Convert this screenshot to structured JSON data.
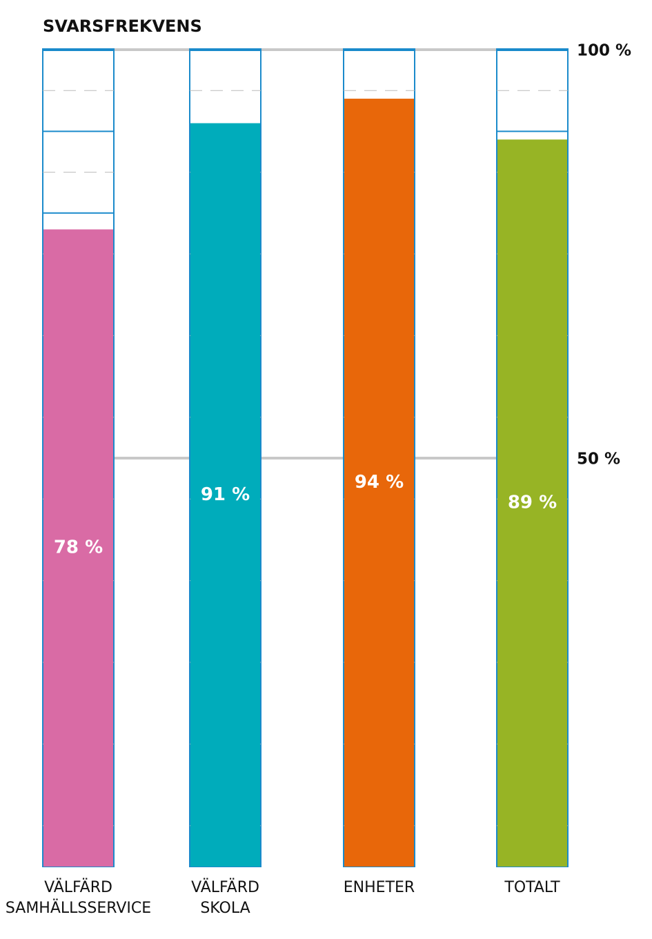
{
  "chart_data": {
    "type": "bar",
    "title": "SVARSFREKVENS",
    "categories": [
      "VÄLFÄRD SAMHÄLLSSERVICE",
      "VÄLFÄRD SKOLA",
      "ENHETER",
      "TOTALT"
    ],
    "values": [
      78,
      91,
      94,
      89
    ],
    "value_labels": [
      "78 %",
      "91 %",
      "94 %",
      "89 %"
    ],
    "colors": [
      "#d96ba5",
      "#00acbb",
      "#e8670a",
      "#97b425"
    ],
    "ylim": [
      0,
      100
    ],
    "yticks": [
      {
        "value": 50,
        "label": "50 %"
      },
      {
        "value": 100,
        "label": "100 %"
      }
    ],
    "grid": true
  }
}
